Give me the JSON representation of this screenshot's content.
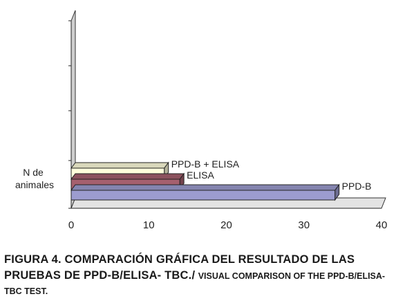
{
  "chart_data": {
    "type": "bar",
    "orientation": "horizontal",
    "three_d": true,
    "categories": [
      "N de animales"
    ],
    "ylabel_lines": [
      "N de",
      "animales"
    ],
    "series": [
      {
        "name": "PPD-B",
        "values": [
          34
        ],
        "color": "#9c9ccf"
      },
      {
        "name": "ELISA",
        "values": [
          14
        ],
        "color": "#a5606e"
      },
      {
        "name": "PPD-B + ELISA",
        "values": [
          12
        ],
        "color": "#fffedc"
      }
    ],
    "xlim": [
      0,
      40
    ],
    "xticks": [
      "0",
      "10",
      "20",
      "30",
      "40"
    ],
    "grid": false,
    "legend": "none",
    "title": "",
    "xlabel": ""
  },
  "caption": {
    "spanish": "FIGURA 4. COMPARACIÓN GRÁFICA DEL RESULTADO DE LAS PRUEBAS DE PPD-B/ELISA- TBC./",
    "english": "VISUAL COMPARISON OF THE PPD-B/ELISA- TBC TEST."
  }
}
